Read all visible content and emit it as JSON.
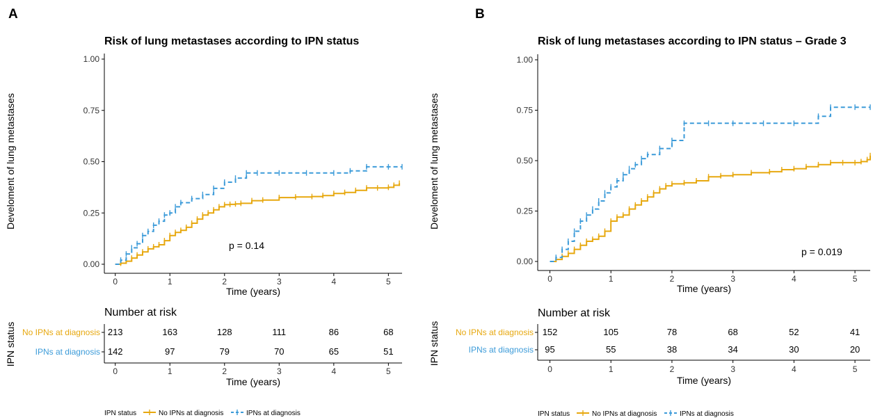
{
  "panels": [
    {
      "letter": "A",
      "title": "Risk of lung metastases according to IPN status",
      "ylabel": "Develoment of lung metastases",
      "xlabel": "Time (years)",
      "y_ticks": [
        "0.00",
        "0.25",
        "0.50",
        "0.75",
        "1.00"
      ],
      "x_ticks": [
        "0",
        "1",
        "2",
        "3",
        "4",
        "5"
      ],
      "pvalue": "p = 0.14",
      "risk_title": "Number at risk",
      "risk_ylabel": "IPN status",
      "risk_xlabel": "Time (years)",
      "risk_rows": [
        {
          "label": "No IPNs at diagnosis",
          "values": [
            "213",
            "163",
            "128",
            "111",
            "86",
            "68"
          ]
        },
        {
          "label": "IPNs at diagnosis",
          "values": [
            "142",
            "97",
            "79",
            "70",
            "65",
            "51"
          ]
        }
      ],
      "legend": {
        "title": "IPN status",
        "items": [
          "No IPNs at diagnosis",
          "IPNs at diagnosis"
        ]
      }
    },
    {
      "letter": "B",
      "title": "Risk of lung metastases according to IPN status – Grade 3",
      "ylabel": "Develoment of lung metastases",
      "xlabel": "Time (years)",
      "y_ticks": [
        "0.00",
        "0.25",
        "0.50",
        "0.75",
        "1.00"
      ],
      "x_ticks": [
        "0",
        "1",
        "2",
        "3",
        "4",
        "5"
      ],
      "pvalue": "p = 0.019",
      "risk_title": "Number at risk",
      "risk_ylabel": "IPN status",
      "risk_xlabel": "Time (years)",
      "risk_rows": [
        {
          "label": "No IPNs at diagnosis",
          "values": [
            "152",
            "105",
            "78",
            "68",
            "52",
            "41"
          ]
        },
        {
          "label": "IPNs at diagnosis",
          "values": [
            "95",
            "55",
            "38",
            "34",
            "30",
            "20"
          ]
        }
      ],
      "legend": {
        "title": "IPN status",
        "items": [
          "No IPNs at diagnosis",
          "IPNs at diagnosis"
        ]
      }
    }
  ],
  "colors": {
    "no_ipn": "#E7A80F",
    "ipn": "#3C9BD9"
  },
  "chart_data": [
    {
      "type": "line",
      "title": "Risk of lung metastases according to IPN status",
      "xlabel": "Time (years)",
      "ylabel": "Develoment of lung metastases",
      "xlim": [
        -0.2,
        5.25
      ],
      "ylim": [
        0,
        1
      ],
      "step": true,
      "grid": false,
      "legend_position": "bottom",
      "series": [
        {
          "name": "No IPNs at diagnosis",
          "line_style": "solid",
          "x": [
            0,
            0.1,
            0.2,
            0.3,
            0.4,
            0.5,
            0.6,
            0.7,
            0.8,
            0.9,
            1.0,
            1.1,
            1.2,
            1.3,
            1.4,
            1.5,
            1.6,
            1.7,
            1.8,
            1.9,
            2.0,
            2.1,
            2.2,
            2.3,
            2.5,
            2.7,
            3.0,
            3.3,
            3.6,
            3.8,
            4.0,
            4.2,
            4.4,
            4.6,
            4.8,
            5.0,
            5.1,
            5.2
          ],
          "y": [
            0,
            0.005,
            0.015,
            0.03,
            0.045,
            0.06,
            0.075,
            0.085,
            0.095,
            0.115,
            0.14,
            0.155,
            0.165,
            0.18,
            0.2,
            0.22,
            0.24,
            0.25,
            0.265,
            0.28,
            0.29,
            0.292,
            0.294,
            0.297,
            0.31,
            0.313,
            0.325,
            0.328,
            0.33,
            0.335,
            0.345,
            0.35,
            0.36,
            0.372,
            0.372,
            0.375,
            0.385,
            0.395
          ]
        },
        {
          "name": "IPNs at diagnosis",
          "line_style": "dashed",
          "x": [
            0,
            0.1,
            0.2,
            0.3,
            0.4,
            0.5,
            0.6,
            0.7,
            0.8,
            0.9,
            1.0,
            1.1,
            1.2,
            1.4,
            1.6,
            1.8,
            2.0,
            2.2,
            2.4,
            2.6,
            3.0,
            3.5,
            4.0,
            4.3,
            4.6,
            5.0,
            5.25
          ],
          "y": [
            0,
            0.02,
            0.05,
            0.08,
            0.1,
            0.14,
            0.16,
            0.19,
            0.21,
            0.24,
            0.25,
            0.28,
            0.3,
            0.32,
            0.34,
            0.37,
            0.4,
            0.42,
            0.445,
            0.445,
            0.445,
            0.445,
            0.445,
            0.455,
            0.475,
            0.475,
            0.475
          ]
        }
      ],
      "annotation": "p = 0.14"
    },
    {
      "type": "line",
      "title": "Risk of lung metastases according to IPN status – Grade 3",
      "xlabel": "Time (years)",
      "ylabel": "Develoment of lung metastases",
      "xlim": [
        -0.2,
        5.25
      ],
      "ylim": [
        0,
        1
      ],
      "step": true,
      "grid": false,
      "legend_position": "bottom",
      "series": [
        {
          "name": "No IPNs at diagnosis",
          "line_style": "solid",
          "x": [
            0,
            0.1,
            0.2,
            0.3,
            0.4,
            0.5,
            0.6,
            0.7,
            0.8,
            0.9,
            1.0,
            1.1,
            1.2,
            1.3,
            1.4,
            1.5,
            1.6,
            1.7,
            1.8,
            1.9,
            2.0,
            2.2,
            2.4,
            2.6,
            2.8,
            3.0,
            3.3,
            3.6,
            3.8,
            4.0,
            4.2,
            4.4,
            4.6,
            4.8,
            5.0,
            5.1,
            5.2,
            5.25
          ],
          "y": [
            0,
            0.01,
            0.025,
            0.04,
            0.06,
            0.08,
            0.1,
            0.11,
            0.125,
            0.15,
            0.2,
            0.22,
            0.23,
            0.26,
            0.28,
            0.3,
            0.32,
            0.34,
            0.36,
            0.375,
            0.385,
            0.39,
            0.4,
            0.42,
            0.425,
            0.43,
            0.44,
            0.445,
            0.455,
            0.46,
            0.47,
            0.48,
            0.49,
            0.49,
            0.49,
            0.495,
            0.505,
            0.525
          ]
        },
        {
          "name": "IPNs at diagnosis",
          "line_style": "dashed",
          "x": [
            0,
            0.1,
            0.2,
            0.3,
            0.4,
            0.5,
            0.6,
            0.7,
            0.8,
            0.9,
            1.0,
            1.1,
            1.2,
            1.3,
            1.4,
            1.5,
            1.6,
            1.8,
            2.0,
            2.2,
            2.6,
            3.0,
            3.5,
            4.0,
            4.4,
            4.6,
            5.0,
            5.25
          ],
          "y": [
            0,
            0.02,
            0.06,
            0.1,
            0.15,
            0.2,
            0.23,
            0.26,
            0.3,
            0.34,
            0.37,
            0.4,
            0.43,
            0.46,
            0.48,
            0.51,
            0.53,
            0.56,
            0.6,
            0.685,
            0.685,
            0.685,
            0.685,
            0.685,
            0.72,
            0.765,
            0.765,
            0.765
          ]
        }
      ],
      "annotation": "p = 0.019"
    }
  ]
}
